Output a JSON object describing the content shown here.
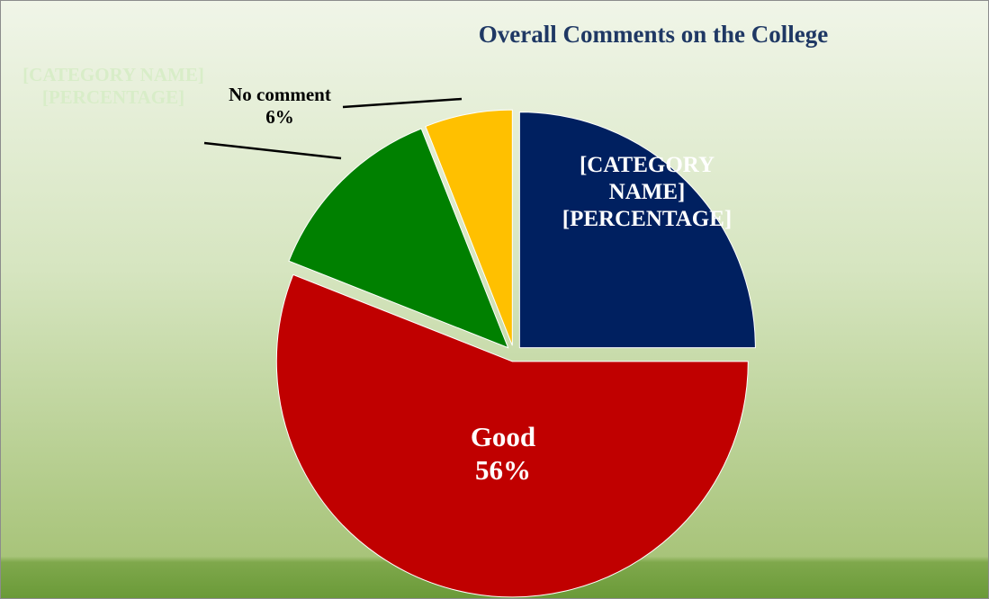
{
  "chart_data": {
    "type": "pie",
    "title": "Overall Comments on the College",
    "categories": [
      "[CATEGORY NAME]",
      "Good",
      "[CATEGORY NAME]",
      "No comment"
    ],
    "values": [
      25,
      56,
      13,
      6
    ],
    "value_labels": [
      "[PERCENTAGE]",
      "56%",
      "[PERCENTAGE]",
      "6%"
    ],
    "colors": [
      "#002060",
      "#c00000",
      "#008000",
      "#ffc000"
    ]
  }
}
